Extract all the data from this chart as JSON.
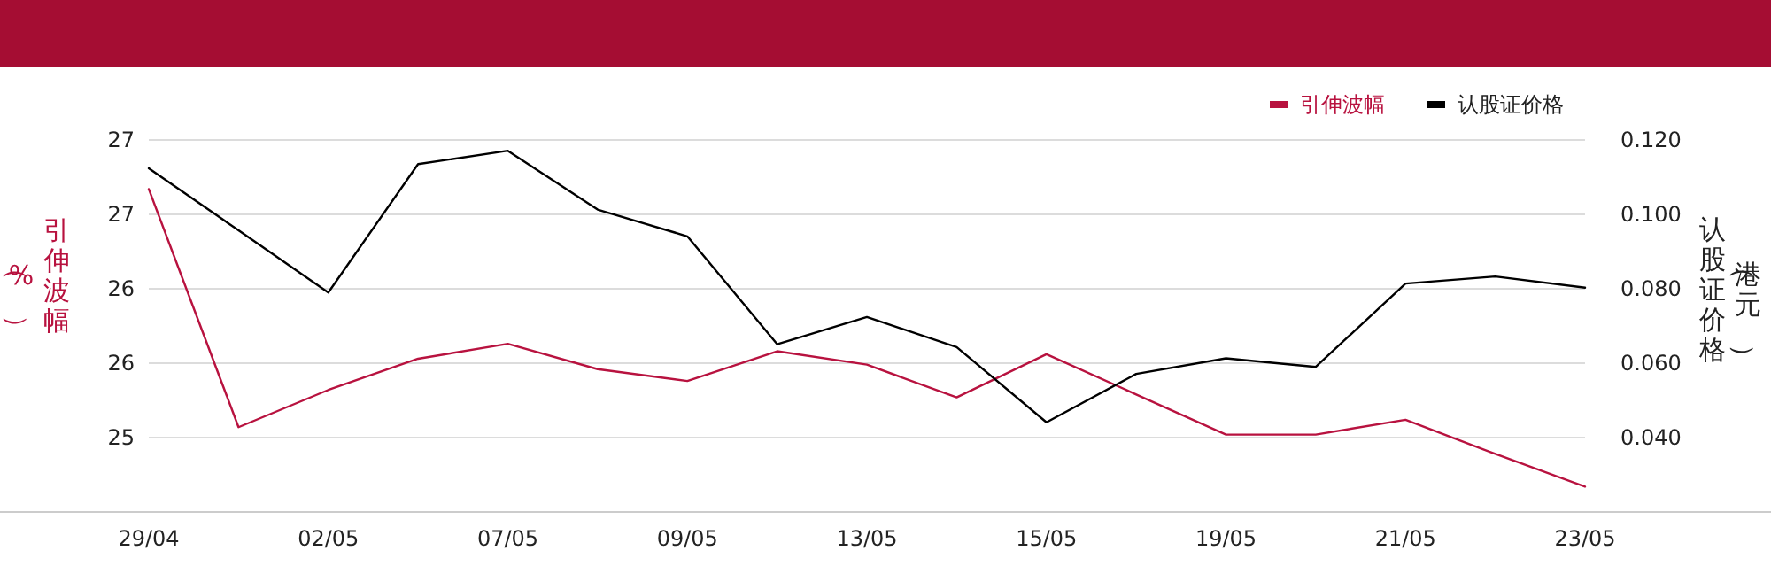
{
  "chart_data": {
    "type": "line",
    "categories": [
      "29/04",
      null,
      "02/05",
      null,
      "07/05",
      null,
      "09/05",
      null,
      "13/05",
      null,
      "15/05",
      null,
      "19/05",
      null,
      "21/05",
      null,
      "23/05"
    ],
    "series": [
      {
        "name": "引伸波幅",
        "color": "#b8123f",
        "values": [
          26.67,
          25.07,
          25.32,
          25.53,
          25.63,
          25.46,
          25.38,
          25.58,
          25.49,
          25.27,
          25.56,
          25.29,
          25.02,
          25.02,
          25.12,
          24.89,
          24.67
        ]
      },
      {
        "name": "认股证价格",
        "color": "#000000",
        "axis": "y2",
        "values": [
          0.1124,
          0.0957,
          0.079,
          0.1135,
          0.1171,
          0.1013,
          0.0941,
          0.0651,
          0.0724,
          0.0643,
          0.0441,
          0.0571,
          0.0613,
          0.059,
          0.0814,
          0.0833,
          0.0803
        ]
      }
    ],
    "ylabel": "引伸波幅（%）",
    "y2label": "认股证价格（港元）",
    "ylim": [
      24.5,
      27
    ],
    "yticks": [
      {
        "value": 25,
        "label": "25"
      },
      {
        "value": 25.5,
        "label": "26"
      },
      {
        "value": 26,
        "label": "26"
      },
      {
        "value": 26.5,
        "label": "27"
      },
      {
        "value": 27,
        "label": "27"
      }
    ],
    "y2lim": [
      0.02,
      0.12
    ],
    "y2ticks": [
      {
        "value": 0.04,
        "label": "0.040"
      },
      {
        "value": 0.06,
        "label": "0.060"
      },
      {
        "value": 0.08,
        "label": "0.080"
      },
      {
        "value": 0.1,
        "label": "0.100"
      },
      {
        "value": 0.12,
        "label": "0.120"
      }
    ],
    "grid": "y",
    "legend": "top right",
    "marker": "none",
    "line_style": "solid"
  }
}
